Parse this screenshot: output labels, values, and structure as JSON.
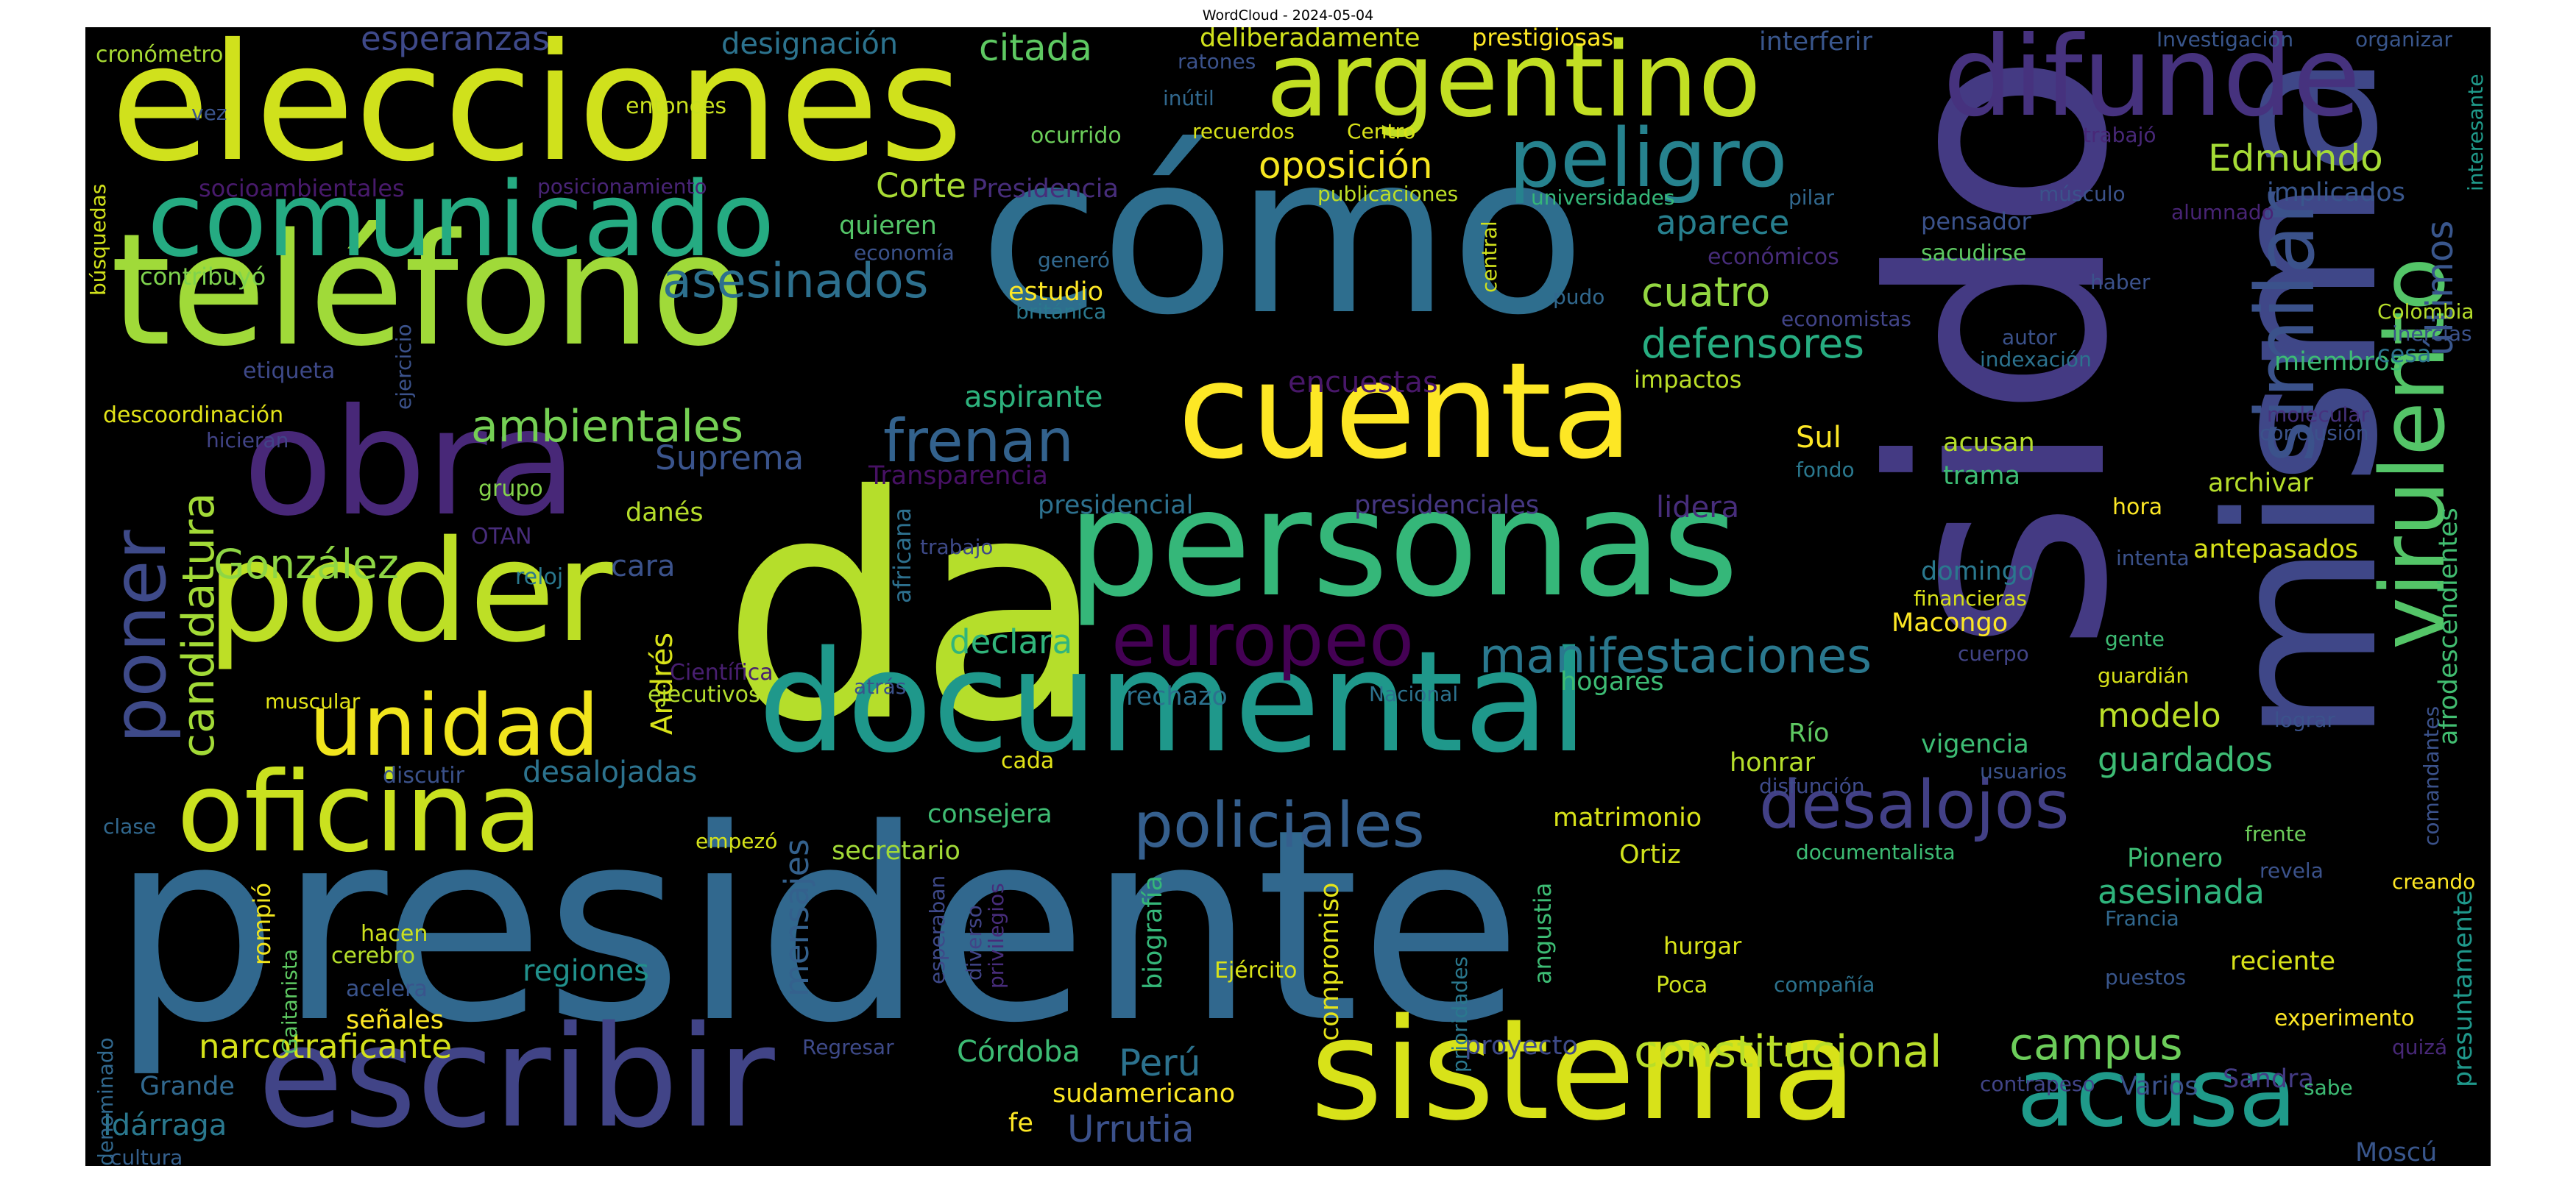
{
  "title": "WordCloud - 2024-05-04",
  "words": [
    {
      "text": "presidente",
      "color": "#31688e"
    },
    {
      "text": "da",
      "color": "#b5de2b"
    },
    {
      "text": "sido",
      "color": "#443a83"
    },
    {
      "text": "cómo",
      "color": "#2e6e8e"
    },
    {
      "text": "misma",
      "color": "#3f4788"
    },
    {
      "text": "elecciones",
      "color": "#d0e11c"
    },
    {
      "text": "teléfono",
      "color": "#a0da39"
    },
    {
      "text": "personas",
      "color": "#35b779"
    },
    {
      "text": "documental",
      "color": "#1f988b"
    },
    {
      "text": "sistema",
      "color": "#d8e219"
    },
    {
      "text": "escribir",
      "color": "#414487"
    },
    {
      "text": "poder",
      "color": "#bddf26"
    },
    {
      "text": "obra",
      "color": "#482878"
    },
    {
      "text": "cuenta",
      "color": "#fde725"
    },
    {
      "text": "argentino",
      "color": "#c2df23"
    },
    {
      "text": "comunicado",
      "color": "#25ab82"
    },
    {
      "text": "difunde",
      "color": "#46327e"
    },
    {
      "text": "oficina",
      "color": "#cae11f"
    },
    {
      "text": "acusa",
      "color": "#1f9a8a"
    },
    {
      "text": "unidad",
      "color": "#f1e51d"
    },
    {
      "text": "peligro",
      "color": "#26828e"
    },
    {
      "text": "virulento",
      "color": "#54c568"
    },
    {
      "text": "similar",
      "color": "#3b528b"
    },
    {
      "text": "poner",
      "color": "#3e4a89"
    },
    {
      "text": "europeo",
      "color": "#440154"
    },
    {
      "text": "desalojos",
      "color": "#424086"
    },
    {
      "text": "policiales",
      "color": "#355f8d"
    },
    {
      "text": "frenan",
      "color": "#33628d"
    },
    {
      "text": "asesinados",
      "color": "#2d708e"
    },
    {
      "text": "manifestaciones",
      "color": "#2a788e"
    },
    {
      "text": "constitucional",
      "color": "#b8de29"
    },
    {
      "text": "campus",
      "color": "#6ccd5a"
    },
    {
      "text": "ambientales",
      "color": "#75d054"
    },
    {
      "text": "candidatura",
      "color": "#a2da37"
    },
    {
      "text": "González",
      "color": "#8ed645"
    },
    {
      "text": "defensores",
      "color": "#27ad81"
    },
    {
      "text": "cuatro",
      "color": "#93d741"
    },
    {
      "text": "oposición",
      "color": "#f6e620"
    },
    {
      "text": "Edmundo",
      "color": "#a5db36"
    },
    {
      "text": "últimos",
      "color": "#39568c"
    },
    {
      "text": "afrodescendientes",
      "color": "#42be71"
    },
    {
      "text": "mensajes",
      "color": "#34618d"
    },
    {
      "text": "narcotraficante",
      "color": "#d5e21a"
    },
    {
      "text": "Perú",
      "color": "#2c728e"
    },
    {
      "text": "Urrutia",
      "color": "#3b518b"
    },
    {
      "text": "sudamericano",
      "color": "#fbe723"
    },
    {
      "text": "declara",
      "color": "#31b57b"
    },
    {
      "text": "modelo",
      "color": "#bade28"
    },
    {
      "text": "guardados",
      "color": "#3dbc74"
    },
    {
      "text": "asesinada",
      "color": "#2fb47c"
    },
    {
      "text": "Corte",
      "color": "#a8db34"
    },
    {
      "text": "aparece",
      "color": "#277f8e"
    },
    {
      "text": "esperanzas",
      "color": "#3e4989"
    },
    {
      "text": "citada",
      "color": "#5ec962"
    },
    {
      "text": "designación",
      "color": "#2c738e"
    },
    {
      "text": "Suprema",
      "color": "#3a548c"
    },
    {
      "text": "Transparencia",
      "color": "#471164"
    },
    {
      "text": "presidencial",
      "color": "#2d718e"
    },
    {
      "text": "presidenciales",
      "color": "#453781"
    },
    {
      "text": "encuestas",
      "color": "#481769"
    },
    {
      "text": "lidera",
      "color": "#472d7b"
    },
    {
      "text": "aspirante",
      "color": "#2db27d"
    },
    {
      "text": "consejera",
      "color": "#3fbc73"
    },
    {
      "text": "secretario",
      "color": "#a2da37"
    },
    {
      "text": "regiones",
      "color": "#21918c"
    },
    {
      "text": "Córdoba",
      "color": "#3dbc74"
    },
    {
      "text": "compromiso",
      "color": "#e5e419"
    },
    {
      "text": "biografía",
      "color": "#35b779"
    },
    {
      "text": "Sandra",
      "color": "#443b84"
    },
    {
      "text": "Varios",
      "color": "#3b528b"
    },
    {
      "text": "Grande",
      "color": "#31688e"
    },
    {
      "text": "Idárraga",
      "color": "#2a788e"
    },
    {
      "text": "Moscú",
      "color": "#39568c"
    },
    {
      "text": "presuntamente",
      "color": "#1f988b"
    },
    {
      "text": "cronómetro",
      "color": "#a8db34"
    },
    {
      "text": "vez",
      "color": "#3a548c"
    },
    {
      "text": "entonces",
      "color": "#cae11f"
    },
    {
      "text": "socioambientales",
      "color": "#481a6c"
    },
    {
      "text": "posicionamiento",
      "color": "#482475"
    },
    {
      "text": "contribuyó",
      "color": "#7fd34e"
    },
    {
      "text": "búsquedas",
      "color": "#d2e21b"
    },
    {
      "text": "etiqueta",
      "color": "#3e4989"
    },
    {
      "text": "ejercicio",
      "color": "#3b528b"
    },
    {
      "text": "descoordinación",
      "color": "#e2e418"
    },
    {
      "text": "hicieran",
      "color": "#414487"
    },
    {
      "text": "grupo",
      "color": "#84d44b"
    },
    {
      "text": "OTAN",
      "color": "#472c7a"
    },
    {
      "text": "danés",
      "color": "#b5de2b"
    },
    {
      "text": "reloj",
      "color": "#2a788e"
    },
    {
      "text": "cara",
      "color": "#3b528b"
    },
    {
      "text": "Andrés",
      "color": "#d8e219"
    },
    {
      "text": "Científica",
      "color": "#481f70"
    },
    {
      "text": "ejecutivos",
      "color": "#b2dd2d"
    },
    {
      "text": "muscular",
      "color": "#e2e418"
    },
    {
      "text": "discutir",
      "color": "#3b528b"
    },
    {
      "text": "desalojadas",
      "color": "#2c738e"
    },
    {
      "text": "clase",
      "color": "#31688e"
    },
    {
      "text": "empezó",
      "color": "#d5e21a"
    },
    {
      "text": "rompió",
      "color": "#f1e51d"
    },
    {
      "text": "Gaitanista",
      "color": "#5ec962"
    },
    {
      "text": "hacen",
      "color": "#cde11d"
    },
    {
      "text": "cerebro",
      "color": "#b5de2b"
    },
    {
      "text": "acelera",
      "color": "#3a548c"
    },
    {
      "text": "señales",
      "color": "#fde725"
    },
    {
      "text": "autodenominado",
      "color": "#31688e"
    },
    {
      "text": "cultura",
      "color": "#35608d"
    },
    {
      "text": "Regresar",
      "color": "#3e4a89"
    },
    {
      "text": "fe",
      "color": "#fde725"
    },
    {
      "text": "esperaban",
      "color": "#3e4989"
    },
    {
      "text": "diverso",
      "color": "#414487"
    },
    {
      "text": "privilegios",
      "color": "#472c7a"
    },
    {
      "text": "cada",
      "color": "#e2e418"
    },
    {
      "text": "atrás",
      "color": "#3b528b"
    },
    {
      "text": "rechazo",
      "color": "#2c728e"
    },
    {
      "text": "africana",
      "color": "#2d708e"
    },
    {
      "text": "trabajo",
      "color": "#3e4a89"
    },
    {
      "text": "inútil",
      "color": "#31688e"
    },
    {
      "text": "ratones",
      "color": "#3b528b"
    },
    {
      "text": "ocurrido",
      "color": "#6ccd5a"
    },
    {
      "text": "recuerdos",
      "color": "#d8e219"
    },
    {
      "text": "Centro",
      "color": "#d8e219"
    },
    {
      "text": "deliberadamente",
      "color": "#d0e11c"
    },
    {
      "text": "prestigiosas",
      "color": "#fde725"
    },
    {
      "text": "interferir",
      "color": "#39568c"
    },
    {
      "text": "Investigación",
      "color": "#39568c"
    },
    {
      "text": "organizar",
      "color": "#39568c"
    },
    {
      "text": "publicaciones",
      "color": "#bddf26"
    },
    {
      "text": "Presidencia",
      "color": "#472d7b"
    },
    {
      "text": "quieren",
      "color": "#54c568"
    },
    {
      "text": "economía",
      "color": "#3b528b"
    },
    {
      "text": "generó",
      "color": "#31688e"
    },
    {
      "text": "estudio",
      "color": "#fde725"
    },
    {
      "text": "británica",
      "color": "#2a788e"
    },
    {
      "text": "central",
      "color": "#d0e11c"
    },
    {
      "text": "pudo",
      "color": "#31688e"
    },
    {
      "text": "universidades",
      "color": "#35b779"
    },
    {
      "text": "pilar",
      "color": "#31688e"
    },
    {
      "text": "económicos",
      "color": "#472c7a"
    },
    {
      "text": "economistas",
      "color": "#414487"
    },
    {
      "text": "pensador",
      "color": "#3b528b"
    },
    {
      "text": "sacudirse",
      "color": "#5ec962"
    },
    {
      "text": "músculo",
      "color": "#3b528b"
    },
    {
      "text": "trabajó",
      "color": "#482878"
    },
    {
      "text": "alumnado",
      "color": "#482475"
    },
    {
      "text": "implicados",
      "color": "#39568c"
    },
    {
      "text": "interesante",
      "color": "#1f9a8a"
    },
    {
      "text": "haber",
      "color": "#3b528b"
    },
    {
      "text": "autor",
      "color": "#3b528b"
    },
    {
      "text": "indexación",
      "color": "#2c728e"
    },
    {
      "text": "impactos",
      "color": "#bade28"
    },
    {
      "text": "miembros",
      "color": "#3dbc74"
    },
    {
      "text": "Colombia",
      "color": "#b5de2b"
    },
    {
      "text": "inercias",
      "color": "#3b528b"
    },
    {
      "text": "cesa",
      "color": "#2c728e"
    },
    {
      "text": "molecular",
      "color": "#46327e"
    },
    {
      "text": "conclusión",
      "color": "#3b528b"
    },
    {
      "text": "Sul",
      "color": "#fde725"
    },
    {
      "text": "acusan",
      "color": "#b5de2b"
    },
    {
      "text": "trama",
      "color": "#3dbc74"
    },
    {
      "text": "fondo",
      "color": "#2a788e"
    },
    {
      "text": "hora",
      "color": "#fde725"
    },
    {
      "text": "archivar",
      "color": "#b5de2b"
    },
    {
      "text": "antepasados",
      "color": "#d8e219"
    },
    {
      "text": "intenta",
      "color": "#3b528b"
    },
    {
      "text": "domingo",
      "color": "#2a788e"
    },
    {
      "text": "financieras",
      "color": "#d8e219"
    },
    {
      "text": "Macongo",
      "color": "#fde725"
    },
    {
      "text": "gente",
      "color": "#3dbc74"
    },
    {
      "text": "cuerpo",
      "color": "#414487"
    },
    {
      "text": "guardián",
      "color": "#d8e219"
    },
    {
      "text": "lograr",
      "color": "#3b528b"
    },
    {
      "text": "Nacional",
      "color": "#2c728e"
    },
    {
      "text": "hogares",
      "color": "#3dbc74"
    },
    {
      "text": "Río",
      "color": "#5ec962"
    },
    {
      "text": "vigencia",
      "color": "#3dbc74"
    },
    {
      "text": "honrar",
      "color": "#b5de2b"
    },
    {
      "text": "disfunción",
      "color": "#3e4a89"
    },
    {
      "text": "usuarios",
      "color": "#3b528b"
    },
    {
      "text": "matrimonio",
      "color": "#d8e219"
    },
    {
      "text": "Ortiz",
      "color": "#d0e11c"
    },
    {
      "text": "documentalista",
      "color": "#3dbc74"
    },
    {
      "text": "Pionero",
      "color": "#3dbc74"
    },
    {
      "text": "frente",
      "color": "#6ccd5a"
    },
    {
      "text": "revela",
      "color": "#3b528b"
    },
    {
      "text": "creando",
      "color": "#fde725"
    },
    {
      "text": "comandantes",
      "color": "#3b528b"
    },
    {
      "text": "Francia",
      "color": "#31688e"
    },
    {
      "text": "reciente",
      "color": "#d8e219"
    },
    {
      "text": "puestos",
      "color": "#39568c"
    },
    {
      "text": "experimento",
      "color": "#fde725"
    },
    {
      "text": "quizá",
      "color": "#482878"
    },
    {
      "text": "sabe",
      "color": "#3dbc74"
    },
    {
      "text": "contrapeso",
      "color": "#414487"
    },
    {
      "text": "hurgar",
      "color": "#d8e219"
    },
    {
      "text": "Poca",
      "color": "#cde11d"
    },
    {
      "text": "compañía",
      "color": "#2c728e"
    },
    {
      "text": "Ejército",
      "color": "#d8e219"
    },
    {
      "text": "angustia",
      "color": "#3dbc74"
    },
    {
      "text": "prioridades",
      "color": "#2a788e"
    },
    {
      "text": "proyecto",
      "color": "#3e4a89"
    }
  ]
}
